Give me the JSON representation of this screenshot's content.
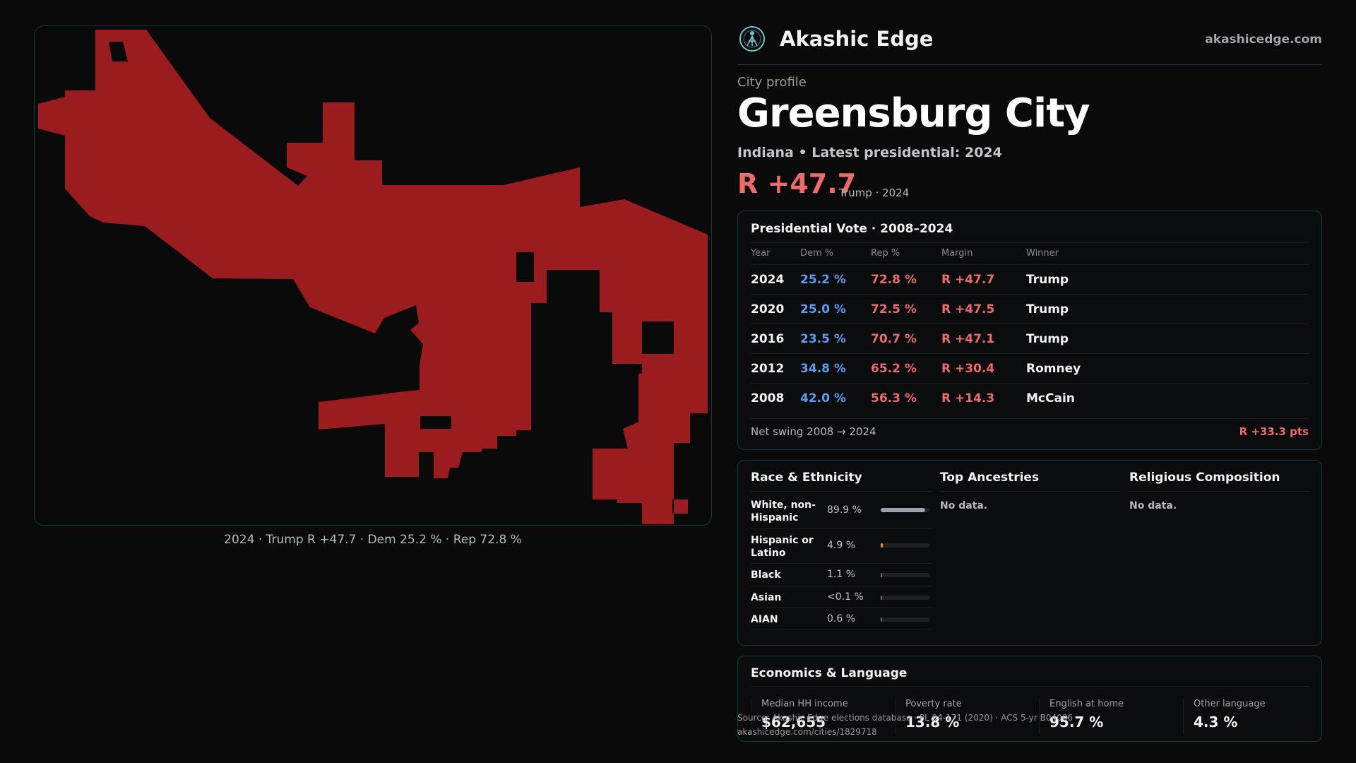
{
  "brand": {
    "name": "Akashic Edge",
    "site": "akashicedge.com",
    "logo_icon": "akashic-logo-icon"
  },
  "profile": {
    "eyebrow": "City profile",
    "title": "Greensburg City",
    "subtitle": "Indiana • Latest presidential: 2024",
    "margin": "R +47.7",
    "margin_note": "Trump · 2024"
  },
  "colors": {
    "republican": "#ef6a6a",
    "democrat": "#5a9cf0",
    "map_fill": "#9b1c1f",
    "accent_border": "#123c44"
  },
  "map": {
    "caption": "2024 · Trump R +47.7 · Dem 25.2 % · Rep 72.8 %",
    "fill_icon": "city-boundary-map"
  },
  "vote": {
    "title": "Presidential Vote · 2008–2024",
    "headers": {
      "year": "Year",
      "dem": "Dem %",
      "rep": "Rep %",
      "margin": "Margin",
      "winner": "Winner"
    },
    "rows": [
      {
        "year": "2024",
        "dem": "25.2 %",
        "rep": "72.8 %",
        "margin": "R +47.7",
        "winner": "Trump"
      },
      {
        "year": "2020",
        "dem": "25.0 %",
        "rep": "72.5 %",
        "margin": "R +47.5",
        "winner": "Trump"
      },
      {
        "year": "2016",
        "dem": "23.5 %",
        "rep": "70.7 %",
        "margin": "R +47.1",
        "winner": "Trump"
      },
      {
        "year": "2012",
        "dem": "34.8 %",
        "rep": "65.2 %",
        "margin": "R +30.4",
        "winner": "Romney"
      },
      {
        "year": "2008",
        "dem": "42.0 %",
        "rep": "56.3 %",
        "margin": "R +14.3",
        "winner": "McCain"
      }
    ],
    "swing_label": "Net swing 2008 → 2024",
    "swing_value": "R +33.3 pts"
  },
  "race": {
    "title": "Race & Ethnicity",
    "rows": [
      {
        "label": "White, non-Hispanic",
        "value": "89.9 %",
        "share": 0.899,
        "color": "#9aa3ad"
      },
      {
        "label": "Hispanic or Latino",
        "value": "4.9 %",
        "share": 0.049,
        "color": "#e89a3c"
      },
      {
        "label": "Black",
        "value": "1.1 %",
        "share": 0.011,
        "color": "#6b6f75"
      },
      {
        "label": "Asian",
        "value": "<0.1 %",
        "share": 0.001,
        "color": "#6b6f75"
      },
      {
        "label": "AIAN",
        "value": "0.6 %",
        "share": 0.006,
        "color": "#6b6f75"
      }
    ]
  },
  "ancestries": {
    "title": "Top Ancestries",
    "empty": "No data."
  },
  "religion": {
    "title": "Religious Composition",
    "empty": "No data."
  },
  "econ": {
    "title": "Economics & Language",
    "stats": [
      {
        "label": "Median HH income",
        "value": "$62,655"
      },
      {
        "label": "Poverty rate",
        "value": "13.8 %"
      },
      {
        "label": "English at home",
        "value": "95.7 %"
      },
      {
        "label": "Other language",
        "value": "4.3 %"
      }
    ]
  },
  "footer": {
    "source": "Source: Akashic Edge elections database · PL 94-171 (2020) · ACS 5-yr B04006",
    "url": "akashicedge.com/cities/1829718"
  }
}
